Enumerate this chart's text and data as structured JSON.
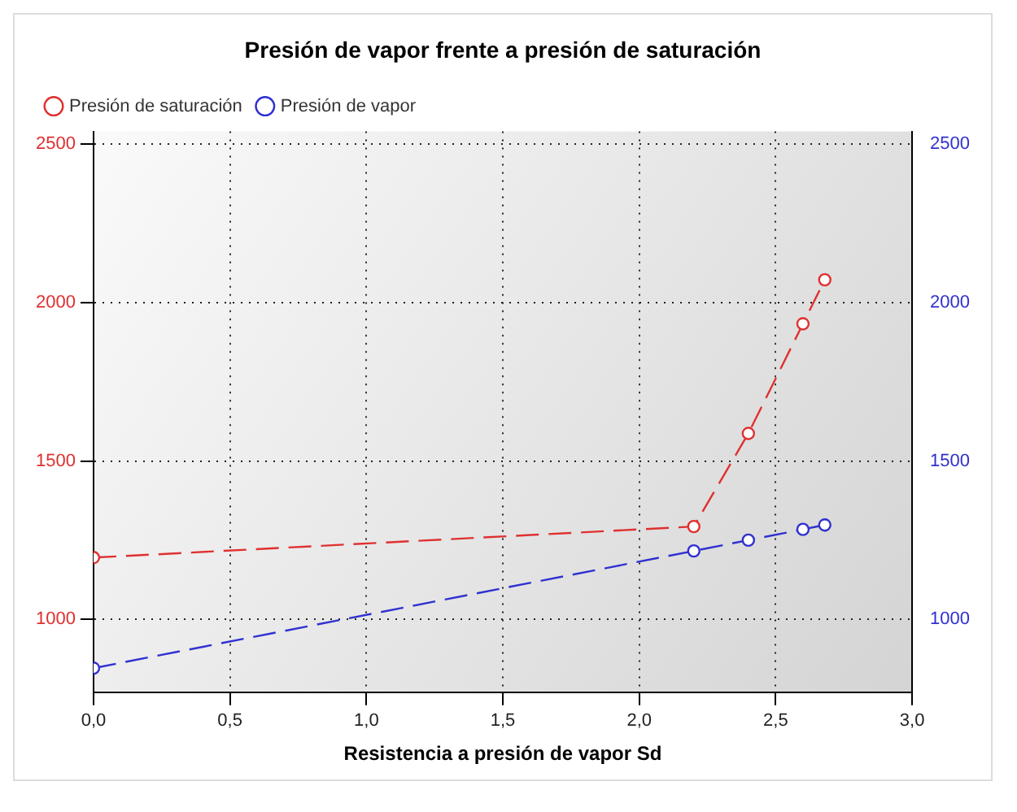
{
  "chart_data": {
    "type": "line",
    "title": "Presión de vapor frente a presión de saturación",
    "xlabel": "Resistencia a presión de vapor Sd",
    "xlim": [
      0,
      3
    ],
    "xticks": [
      {
        "value": 0,
        "label": "0,0"
      },
      {
        "value": 0.5,
        "label": "0,5"
      },
      {
        "value": 1,
        "label": "1,0"
      },
      {
        "value": 1.5,
        "label": "1,5"
      },
      {
        "value": 2,
        "label": "2,0"
      },
      {
        "value": 2.5,
        "label": "2,5"
      },
      {
        "value": 3,
        "label": "3,0"
      }
    ],
    "ylim": [
      770,
      2540
    ],
    "yticks": [
      1000,
      1500,
      2000,
      2500
    ],
    "y2lim": [
      770,
      2540
    ],
    "y2ticks": [
      1000,
      1500,
      2000,
      2500
    ],
    "series": [
      {
        "name": "Presión de saturación",
        "color": "#e03030",
        "x": [
          0,
          2.2,
          2.4,
          2.6,
          2.68
        ],
        "values": [
          1195,
          1293,
          1587,
          1933,
          2072
        ],
        "line_style": "dashed"
      },
      {
        "name": "Presión de vapor",
        "color": "#3030d0",
        "x": [
          0,
          2.2,
          2.4,
          2.6,
          2.68
        ],
        "values": [
          846,
          1216,
          1250,
          1284,
          1298
        ],
        "line_style": "dashed",
        "axis": "y2"
      }
    ],
    "grid": true,
    "legend": "top left",
    "marker": "circle"
  }
}
